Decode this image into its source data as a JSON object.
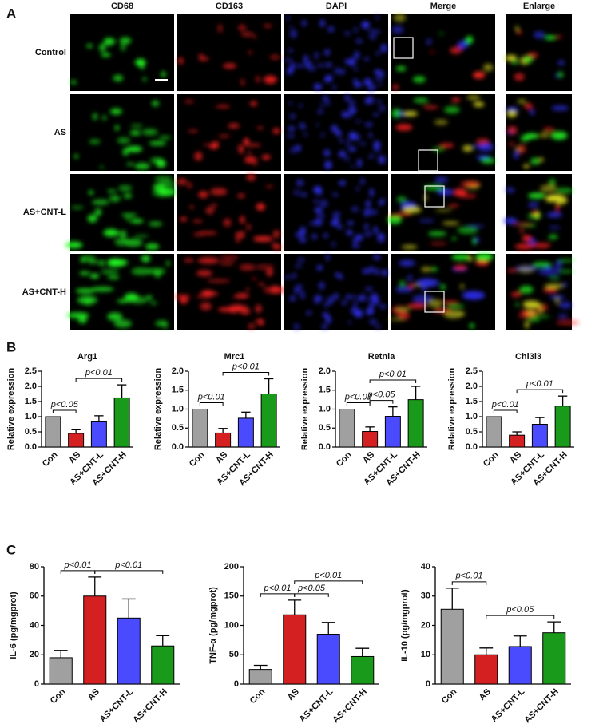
{
  "panel_a": {
    "label": "A",
    "columns": [
      "CD68",
      "CD163",
      "DAPI",
      "Merge",
      "Enlarge"
    ],
    "rows": [
      "Control",
      "AS",
      "AS+CNT-L",
      "AS+CNT-H"
    ]
  },
  "panel_b": {
    "label": "B"
  },
  "panel_c": {
    "label": "C"
  },
  "chart_data": [
    {
      "type": "bar",
      "title": "Arg1",
      "ylabel": "Relative expression",
      "categories": [
        "Con",
        "AS",
        "AS+CNT-L",
        "AS+CNT-H"
      ],
      "values": [
        1.0,
        0.45,
        0.83,
        1.62
      ],
      "errors": [
        0,
        0.12,
        0.2,
        0.43
      ],
      "colors": [
        "#a0a0a0",
        "#d42020",
        "#4a4aff",
        "#1a9a1a"
      ],
      "ylim": [
        0,
        2.5
      ],
      "yticks": [
        {
          "value": 0,
          "label": "0.0"
        },
        0.5,
        {
          "value": 1,
          "label": "1.0"
        },
        1.5,
        {
          "value": 2,
          "label": "2.0"
        },
        2.5
      ],
      "annotations": [
        {
          "text": "p<0.05",
          "from": 0,
          "to": 1
        },
        {
          "text": "p<0.01",
          "from": 1,
          "to": 3
        }
      ]
    },
    {
      "type": "bar",
      "title": "Mrc1",
      "ylabel": "Relative expression",
      "categories": [
        "Con",
        "AS",
        "AS+CNT-L",
        "AS+CNT-H"
      ],
      "values": [
        1.0,
        0.37,
        0.76,
        1.4
      ],
      "errors": [
        0,
        0.12,
        0.16,
        0.4
      ],
      "colors": [
        "#a0a0a0",
        "#d42020",
        "#4a4aff",
        "#1a9a1a"
      ],
      "ylim": [
        0,
        2
      ],
      "yticks": [
        {
          "value": 0,
          "label": "0.0"
        },
        0.5,
        {
          "value": 1,
          "label": "1.0"
        },
        1.5,
        {
          "value": 2,
          "label": "2.0"
        }
      ],
      "annotations": [
        {
          "text": "p<0.01",
          "from": 0,
          "to": 1
        },
        {
          "text": "p<0.01",
          "from": 1,
          "to": 3
        }
      ]
    },
    {
      "type": "bar",
      "title": "Retnla",
      "ylabel": "Relative expression",
      "categories": [
        "Con",
        "AS",
        "AS+CNT-L",
        "AS+CNT-H"
      ],
      "values": [
        1.0,
        0.41,
        0.81,
        1.25
      ],
      "errors": [
        0,
        0.12,
        0.25,
        0.35
      ],
      "colors": [
        "#a0a0a0",
        "#d42020",
        "#4a4aff",
        "#1a9a1a"
      ],
      "ylim": [
        0,
        2
      ],
      "yticks": [
        {
          "value": 0,
          "label": "0.0"
        },
        0.5,
        {
          "value": 1,
          "label": "1.0"
        },
        1.5,
        {
          "value": 2,
          "label": "2.0"
        }
      ],
      "annotations": [
        {
          "text": "p<0.05",
          "from": 1,
          "to": 2
        },
        {
          "text": "p<0.01",
          "from": 0,
          "to": 1
        },
        {
          "text": "p<0.01",
          "from": 1,
          "to": 3
        }
      ]
    },
    {
      "type": "bar",
      "title": "Chi3l3",
      "ylabel": "Relative expression",
      "categories": [
        "Con",
        "AS",
        "AS+CNT-L",
        "AS+CNT-H"
      ],
      "values": [
        1.0,
        0.39,
        0.75,
        1.35
      ],
      "errors": [
        0,
        0.11,
        0.22,
        0.33
      ],
      "colors": [
        "#a0a0a0",
        "#d42020",
        "#4a4aff",
        "#1a9a1a"
      ],
      "ylim": [
        0,
        2.5
      ],
      "yticks": [
        {
          "value": 0,
          "label": "0.0"
        },
        0.5,
        {
          "value": 1,
          "label": "1.0"
        },
        1.5,
        {
          "value": 2,
          "label": "2.0"
        },
        2.5
      ],
      "annotations": [
        {
          "text": "p<0.01",
          "from": 0,
          "to": 1
        },
        {
          "text": "p<0.01",
          "from": 1,
          "to": 3
        }
      ]
    },
    {
      "type": "bar",
      "ylabel": "IL-6 (pg/mgprot)",
      "categories": [
        "Con",
        "AS",
        "AS+CNT-L",
        "AS+CNT-H"
      ],
      "values": [
        18,
        60,
        45,
        26
      ],
      "errors": [
        5,
        13,
        13,
        7
      ],
      "colors": [
        "#a0a0a0",
        "#d42020",
        "#4a4aff",
        "#1a9a1a"
      ],
      "ylim": [
        0,
        80
      ],
      "yticks": [
        0,
        20,
        40,
        60,
        80
      ],
      "annotations": [
        {
          "text": "p<0.01",
          "from": 0,
          "to": 1
        },
        {
          "text": "p<0.01",
          "from": 1,
          "to": 3
        }
      ]
    },
    {
      "type": "bar",
      "ylabel": "TNF-α (pg/mgprot)",
      "categories": [
        "Con",
        "AS",
        "AS+CNT-L",
        "AS+CNT-H"
      ],
      "values": [
        25,
        118,
        85,
        47
      ],
      "errors": [
        7,
        25,
        20,
        14
      ],
      "colors": [
        "#a0a0a0",
        "#d42020",
        "#4a4aff",
        "#1a9a1a"
      ],
      "ylim": [
        0,
        200
      ],
      "yticks": [
        0,
        50,
        100,
        150,
        200
      ],
      "annotations": [
        {
          "text": "p<0.01",
          "from": 0,
          "to": 1
        },
        {
          "text": "p<0.05",
          "from": 1,
          "to": 2
        },
        {
          "text": "p<0.01",
          "from": 1,
          "to": 3
        }
      ]
    },
    {
      "type": "bar",
      "ylabel": "IL-10 (pg/mgprot)",
      "categories": [
        "Con",
        "AS",
        "AS+CNT-L",
        "AS+CNT-H"
      ],
      "values": [
        25.5,
        10,
        12.8,
        17.5
      ],
      "errors": [
        7.2,
        2.3,
        3.6,
        3.7
      ],
      "colors": [
        "#a0a0a0",
        "#d42020",
        "#4a4aff",
        "#1a9a1a"
      ],
      "ylim": [
        0,
        40
      ],
      "yticks": [
        0,
        10,
        20,
        30,
        40
      ],
      "annotations": [
        {
          "text": "p<0.01",
          "from": 0,
          "to": 1
        },
        {
          "text": "p<0.05",
          "from": 1,
          "to": 3
        }
      ]
    }
  ]
}
